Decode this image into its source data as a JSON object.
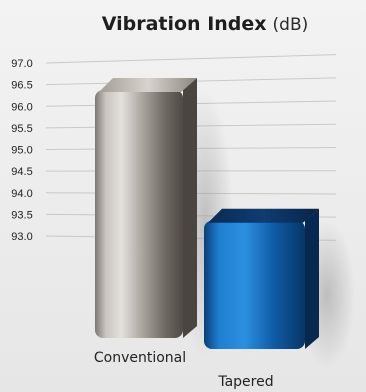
{
  "chart_data": {
    "type": "bar",
    "title": "Vibration Index",
    "title_unit": "(dB)",
    "categories": [
      "Conventional",
      "Tapered"
    ],
    "values": [
      96.4,
      93.0
    ],
    "ylim": [
      93.0,
      97.0
    ],
    "yticks": [
      "97.0",
      "96.5",
      "96.0",
      "95.5",
      "95.0",
      "94.5",
      "94.0",
      "93.5",
      "93.0"
    ],
    "grid": true,
    "colors": {
      "Conventional": "#a9a39c",
      "Tapered": "#0d5fa3"
    }
  }
}
